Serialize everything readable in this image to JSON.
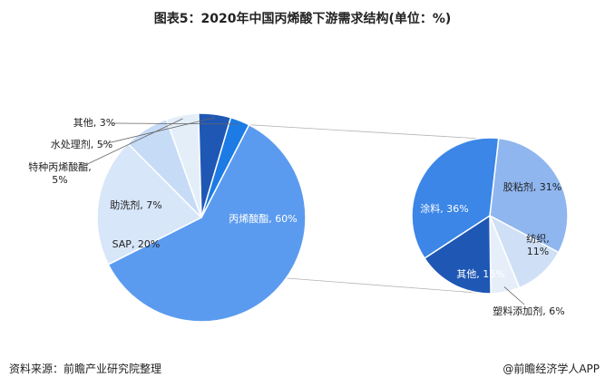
{
  "title": "图表5：2020年中国丙烯酸下游需求结构(单位：%)",
  "footer": {
    "source": "资料来源：前瞻产业研究院整理",
    "credit": "@前瞻经济学人APP"
  },
  "chart_data": [
    {
      "type": "pie",
      "title": "",
      "slices": [
        {
          "label": "丙烯酸酯",
          "value": 60,
          "color": "#5b9bef"
        },
        {
          "label": "SAP",
          "value": 20,
          "color": "#d7e6f8"
        },
        {
          "label": "助洗剂",
          "value": 7,
          "color": "#c6dbf5"
        },
        {
          "label": "特种丙烯酸酯",
          "value": 5,
          "color": "#e4eef9"
        },
        {
          "label": "水处理剂",
          "value": 5,
          "color": "#1f57b5"
        },
        {
          "label": "其他",
          "value": 3,
          "color": "#1c7be4"
        }
      ]
    },
    {
      "type": "pie",
      "title": "",
      "slices": [
        {
          "label": "胶粘剂",
          "value": 31,
          "color": "#8fb6ef"
        },
        {
          "label": "纺织",
          "value": 11,
          "color": "#cfe0f6"
        },
        {
          "label": "塑料添加剂",
          "value": 6,
          "color": "#e6eff9"
        },
        {
          "label": "其他",
          "value": 16,
          "color": "#1f57b5"
        },
        {
          "label": "涂料",
          "value": 36,
          "color": "#3b86e6"
        }
      ]
    }
  ]
}
